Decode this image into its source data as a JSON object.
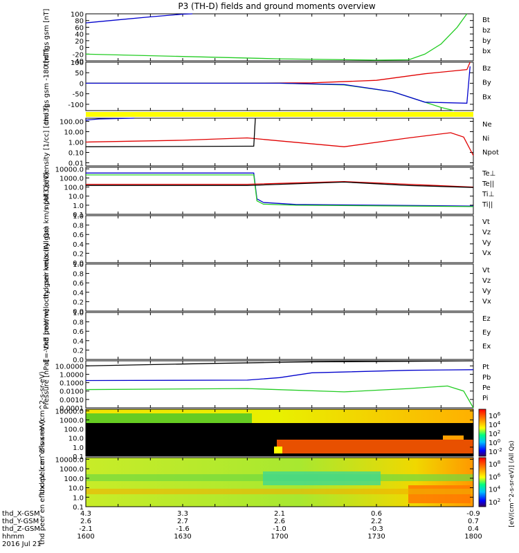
{
  "title": "P3 (TH-D) fields and ground moments overview",
  "xaxis": {
    "tick_labels": [
      "1600",
      "1630",
      "1700",
      "1730",
      "1800"
    ],
    "x_gsm": [
      "4.3",
      "3.3",
      "2.1",
      "0.6",
      "-0.9"
    ],
    "y_gsm": [
      "2.6",
      "2.7",
      "2.6",
      "2.2",
      "0.7"
    ],
    "z_gsm": [
      "-2.1",
      "-1.6",
      "-1.0",
      "-0.3",
      "0.4"
    ],
    "row_labels": [
      "thd_X-GSM",
      "thd_Y-GSM",
      "thd_Z-GSM",
      "hhmm"
    ],
    "date": "2016 Jul 21",
    "range_min": [
      960,
      1080
    ]
  },
  "colors": {
    "black": "#000000",
    "red": "#e00000",
    "green": "#22cc22",
    "blue": "#0000cc",
    "yellow": "#ffff00"
  },
  "chart_data": [
    {
      "type": "line",
      "ylabel": "thd fgs gsm [nT]",
      "ylim": [
        -40,
        100
      ],
      "ticks": [
        "100",
        "80",
        "60",
        "40",
        "20",
        "0",
        "-20",
        "-40"
      ],
      "tick_values": [
        100,
        80,
        60,
        40,
        20,
        0,
        -20,
        -40
      ],
      "legend": [
        {
          "name": "Bt",
          "color": "#000000"
        },
        {
          "name": "bz",
          "color": "#e00000"
        },
        {
          "name": "by",
          "color": "#22cc22"
        },
        {
          "name": "bx",
          "color": "#0000cc"
        }
      ],
      "series": [
        {
          "name": "bx",
          "color": "#0000cc",
          "x": [
            960,
            970,
            980,
            990,
            993
          ],
          "y": [
            73,
            82,
            91,
            99,
            100
          ]
        },
        {
          "name": "by",
          "color": "#22cc22",
          "x": [
            960,
            990,
            1020,
            1050,
            1060,
            1065,
            1070,
            1075,
            1078
          ],
          "y": [
            -20,
            -27,
            -34,
            -38,
            -37,
            -20,
            10,
            60,
            100
          ]
        }
      ]
    },
    {
      "type": "line",
      "ylabel": "thd fgs gsm -180 [nT]",
      "ylim": [
        -130,
        100
      ],
      "ticks": [
        "100",
        "50",
        "0",
        "-50",
        "-100"
      ],
      "tick_values": [
        100,
        50,
        0,
        -50,
        -100
      ],
      "legend": [
        {
          "name": "Bz",
          "color": "#e00000"
        },
        {
          "name": "By",
          "color": "#22cc22"
        },
        {
          "name": "Bx",
          "color": "#0000cc"
        }
      ],
      "series": [
        {
          "name": "Bz",
          "color": "#e00000",
          "x": [
            960,
            1000,
            1030,
            1050,
            1065,
            1078,
            1079
          ],
          "y": [
            0,
            0,
            2,
            14,
            45,
            65,
            100
          ]
        },
        {
          "name": "By",
          "color": "#22cc22",
          "x": [
            960,
            1020,
            1040,
            1055,
            1070,
            1074
          ],
          "y": [
            0,
            0,
            -8,
            -40,
            -115,
            -130
          ]
        },
        {
          "name": "Bx",
          "color": "#0000cc",
          "x": [
            960,
            1020,
            1040,
            1055,
            1065,
            1078,
            1079
          ],
          "y": [
            0,
            0,
            -6,
            -40,
            -90,
            -95,
            80
          ]
        }
      ],
      "flag_bar_color": "#ffff00"
    },
    {
      "type": "line",
      "ylabel": "Density [1/cc] [cm-3]",
      "yscale": "log",
      "ylim": [
        0.005,
        200
      ],
      "ticks": [
        "100.00",
        "10.00",
        "1.00",
        "0.10",
        "0.01"
      ],
      "tick_values": [
        100,
        10,
        1,
        0.1,
        0.01
      ],
      "legend": [
        {
          "name": "Ne",
          "color": "#e00000"
        },
        {
          "name": "Ni",
          "color": "#000000"
        },
        {
          "name": "Npot",
          "color": "#0000cc"
        }
      ],
      "series": [
        {
          "name": "Ne",
          "color": "#e00000",
          "x": [
            960,
            990,
            1010,
            1020,
            1040,
            1060,
            1073,
            1077,
            1080
          ],
          "y": [
            1.0,
            1.5,
            2.5,
            1.3,
            0.35,
            2.5,
            8,
            3,
            0.05
          ]
        },
        {
          "name": "Ni",
          "color": "#000000",
          "x": [
            960,
            1010,
            1012,
            1012.5
          ],
          "y": [
            0.35,
            0.4,
            0.4,
            200
          ]
        },
        {
          "name": "Npot",
          "color": "#0000cc",
          "x": [
            960,
            964,
            975
          ],
          "y": [
            130,
            170,
            200
          ]
        }
      ]
    },
    {
      "type": "line",
      "ylabel": "npot3 [eV]",
      "yscale": "log",
      "ylim": [
        0.1,
        15000
      ],
      "ticks": [
        "10000.0",
        "1000.0",
        "100.0",
        "10.0",
        "1.0",
        "0.1"
      ],
      "tick_values": [
        10000,
        1000,
        100,
        10,
        1,
        0.1
      ],
      "legend": [
        {
          "name": "Te⊥",
          "color": "#e00000"
        },
        {
          "name": "Te||",
          "color": "#000000"
        },
        {
          "name": "Ti⊥",
          "color": "#0000cc"
        },
        {
          "name": "Ti||",
          "color": "#22cc22"
        }
      ],
      "series": [
        {
          "name": "Ti⊥",
          "color": "#0000cc",
          "x": [
            960,
            1012,
            1013,
            1015,
            1025,
            1080
          ],
          "y": [
            3500,
            3500,
            5,
            2,
            1.2,
            0.8
          ]
        },
        {
          "name": "Ti||",
          "color": "#22cc22",
          "x": [
            960,
            1012,
            1013,
            1015,
            1025,
            1080
          ],
          "y": [
            2200,
            2200,
            3,
            1.3,
            1.0,
            0.7
          ]
        },
        {
          "name": "Te⊥",
          "color": "#e00000",
          "x": [
            960,
            1010,
            1040,
            1060,
            1080
          ],
          "y": [
            200,
            200,
            400,
            200,
            100
          ]
        },
        {
          "name": "Te||",
          "color": "#000000",
          "x": [
            960,
            1010,
            1040,
            1060,
            1080
          ],
          "y": [
            150,
            150,
            350,
            150,
            90
          ]
        }
      ]
    },
    {
      "type": "line",
      "ylabel": "thd peir velocity gsm km/s (All Qs)",
      "ylim": [
        0,
        1
      ],
      "ticks": [
        "1.0",
        "0.8",
        "0.6",
        "0.4",
        "0.2",
        "0.0"
      ],
      "tick_values": [
        1,
        0.8,
        0.6,
        0.4,
        0.2,
        0
      ],
      "legend": [
        {
          "name": "Vt",
          "color": "#000000"
        },
        {
          "name": "Vz",
          "color": "#e00000"
        },
        {
          "name": "Vy",
          "color": "#22cc22"
        },
        {
          "name": "Vx",
          "color": "#0000cc"
        }
      ],
      "series": []
    },
    {
      "type": "line",
      "ylabel": "thd peer velocity gsm km/s (All Qs)",
      "ylim": [
        0,
        1
      ],
      "ticks": [
        "1.0",
        "0.8",
        "0.6",
        "0.4",
        "0.2",
        "0.0"
      ],
      "tick_values": [
        1,
        0.8,
        0.6,
        0.4,
        0.2,
        0
      ],
      "legend": [
        {
          "name": "Vt",
          "color": "#000000"
        },
        {
          "name": "Vz",
          "color": "#e00000"
        },
        {
          "name": "Vy",
          "color": "#22cc22"
        },
        {
          "name": "Vx",
          "color": "#0000cc"
        }
      ],
      "series": []
    },
    {
      "type": "line",
      "ylabel": "E=-VxB [mV/m]",
      "ylim": [
        0,
        1
      ],
      "ticks": [
        "1.0",
        "0.8",
        "0.6",
        "0.4",
        "0.2",
        "0.0"
      ],
      "tick_values": [
        1,
        0.8,
        0.6,
        0.4,
        0.2,
        0
      ],
      "legend": [
        {
          "name": "Ez",
          "color": "#e00000"
        },
        {
          "name": "Ey",
          "color": "#22cc22"
        },
        {
          "name": "Ex",
          "color": "#0000cc"
        }
      ],
      "series": []
    },
    {
      "type": "line",
      "ylabel": "Pressure [nPa]",
      "yscale": "log",
      "ylim": [
        0.0001,
        40
      ],
      "ticks": [
        "10.0000",
        "1.0000",
        "0.1000",
        "0.0100",
        "0.0010",
        "0.0001"
      ],
      "tick_values": [
        10,
        1,
        0.1,
        0.01,
        0.001,
        0.0001
      ],
      "legend": [
        {
          "name": "Pt",
          "color": "#000000"
        },
        {
          "name": "Pb",
          "color": "#e00000"
        },
        {
          "name": "Pe",
          "color": "#22cc22"
        },
        {
          "name": "Pi",
          "color": "#0000cc"
        }
      ],
      "series": [
        {
          "name": "Pt",
          "color": "#000000",
          "x": [
            960,
            1000,
            1030,
            1060,
            1080
          ],
          "y": [
            10,
            20,
            30,
            35,
            40
          ]
        },
        {
          "name": "Pi",
          "color": "#0000cc",
          "x": [
            960,
            1010,
            1020,
            1030,
            1060,
            1080
          ],
          "y": [
            0.18,
            0.2,
            0.4,
            1.5,
            3,
            3.5
          ]
        },
        {
          "name": "Pe",
          "color": "#22cc22",
          "x": [
            960,
            1010,
            1040,
            1060,
            1072,
            1077,
            1080
          ],
          "y": [
            0.015,
            0.02,
            0.008,
            0.02,
            0.04,
            0.01,
            0.0001
          ]
        }
      ]
    },
    {
      "type": "heatmap",
      "ylabel": "thd peir en eflux eV (cm^2-s-sr-eV)",
      "yscale": "log",
      "ylim": [
        0.1,
        15000
      ],
      "ticks": [
        "10000.0",
        "1000.0",
        "100.0",
        "10.0",
        "1.0",
        "0.1"
      ],
      "tick_values": [
        10000,
        1000,
        100,
        10,
        1,
        0.1
      ],
      "colorbar_ticks": [
        "10^6",
        "10^4",
        "10^2",
        "10^0",
        "10^-2"
      ],
      "colorbar_label": "[eV/(cm^2-s-sr-eV)] (All Qs)"
    },
    {
      "type": "heatmap",
      "ylabel": "thd peer en eflux eV (cm^2-s-sr-eV)",
      "yscale": "log",
      "ylim": [
        0.1,
        15000
      ],
      "ticks": [
        "10000.0",
        "1000.0",
        "100.0",
        "10.0",
        "1.0",
        "0.1"
      ],
      "tick_values": [
        10000,
        1000,
        100,
        10,
        1,
        0.1
      ],
      "colorbar_ticks": [
        "10^8",
        "10^6",
        "10^4",
        "10^2"
      ],
      "colorbar_label": "[eV/(cm^2-s-sr-eV)] (All Qs)"
    }
  ]
}
